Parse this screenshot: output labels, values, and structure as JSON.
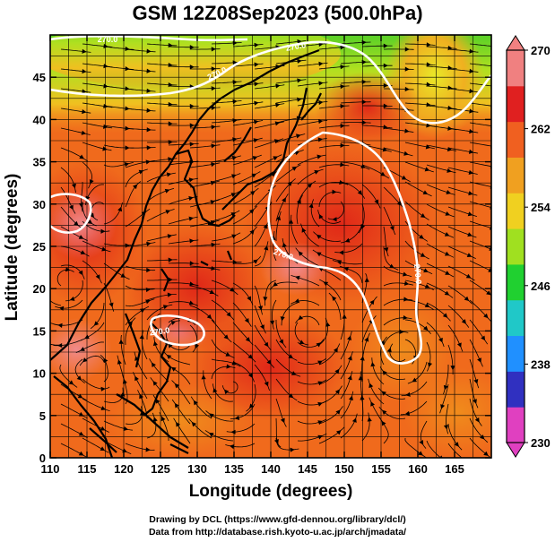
{
  "title": "GSM 12Z08Sep2023 (500.0hPa)",
  "x_axis": {
    "label": "Longitude (degrees)",
    "min": 110,
    "max": 170,
    "ticks": [
      "110",
      "115",
      "120",
      "125",
      "130",
      "135",
      "140",
      "145",
      "150",
      "155",
      "160",
      "165"
    ]
  },
  "y_axis": {
    "label": "Latitude  (degrees)",
    "min": 0,
    "max": 50,
    "ticks": [
      "0",
      "5",
      "10",
      "15",
      "20",
      "25",
      "30",
      "35",
      "40",
      "45"
    ]
  },
  "colorbar": {
    "levels": [
      "230",
      "238",
      "246",
      "254",
      "262",
      "270"
    ],
    "min": 230,
    "max": 270,
    "colors": [
      "#e040c0",
      "#3030c0",
      "#2090ff",
      "#20c8c8",
      "#20d030",
      "#a0e020",
      "#f0d020",
      "#f0a020",
      "#f06020",
      "#e02020",
      "#f08080"
    ]
  },
  "contour_labels": [
    "270.0",
    "270.0",
    "270.0",
    "270.0",
    "270.0",
    "270.0"
  ],
  "credits": {
    "line1": "Drawing by DCL (https://www.gfd-dennou.org/library/dcl/)",
    "line2": "Data from http://database.rish.kyoto-u.ac.jp/arch/jmadata/"
  }
}
